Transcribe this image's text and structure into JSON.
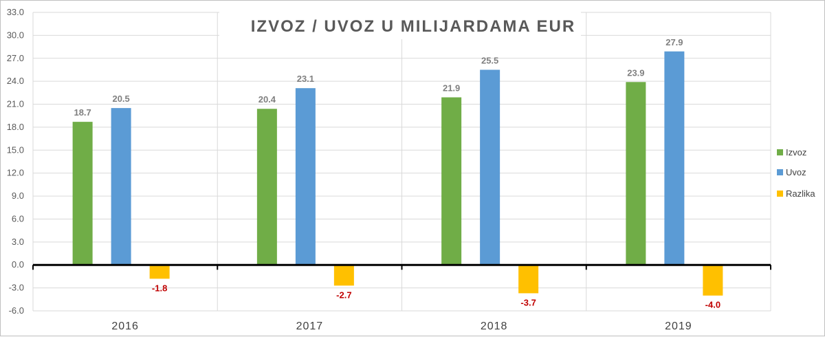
{
  "chart_data": {
    "type": "bar",
    "title": "IZVOZ / UVOZ U MILIJARDAMA EUR",
    "categories": [
      "2016",
      "2017",
      "2018",
      "2019"
    ],
    "series": [
      {
        "name": "Izvoz",
        "color": "#70ad47",
        "label_color": "#7f7f7f",
        "values": [
          18.7,
          20.4,
          21.9,
          23.9
        ],
        "labels": [
          "18.7",
          "20.4",
          "21.9",
          "23.9"
        ]
      },
      {
        "name": "Uvoz",
        "color": "#5b9bd5",
        "label_color": "#7f7f7f",
        "values": [
          20.5,
          23.1,
          25.5,
          27.9
        ],
        "labels": [
          "20.5",
          "23.1",
          "25.5",
          "27.9"
        ]
      },
      {
        "name": "Razlika",
        "color": "#ffc000",
        "label_color": "#c00000",
        "values": [
          -1.8,
          -2.7,
          -3.7,
          -4.0
        ],
        "labels": [
          "-1.8",
          "-2.7",
          "-3.7",
          "-4.0"
        ]
      }
    ],
    "ylim": [
      -6.0,
      33.0
    ],
    "yticks": [
      "33.0",
      "30.0",
      "27.0",
      "24.0",
      "21.0",
      "18.0",
      "15.0",
      "12.0",
      "9.0",
      "6.0",
      "3.0",
      "0.0",
      "-3.0",
      "-6.0"
    ],
    "grid": true,
    "legend_position": "right"
  }
}
